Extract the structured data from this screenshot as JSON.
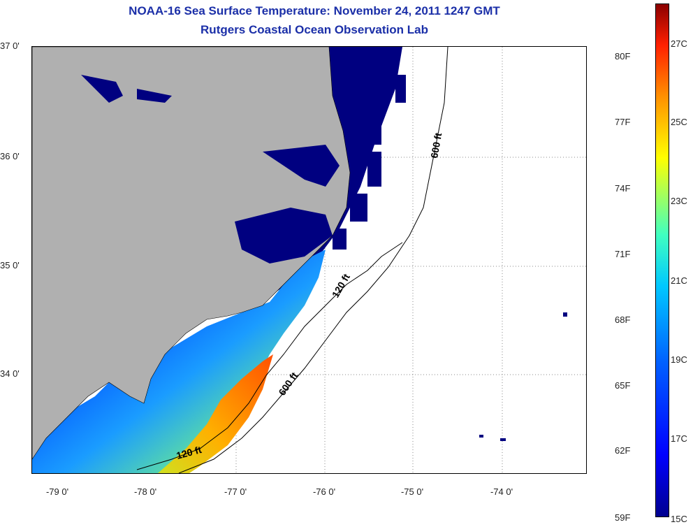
{
  "title": {
    "line1": "NOAA-16 Sea Surface Temperature:  November 24, 2011 1247 GMT",
    "line2": "Rutgers Coastal Ocean Observation Lab"
  },
  "map": {
    "latitude_labels": [
      "37 0'",
      "36 0'",
      "35 0'",
      "34 0'"
    ],
    "longitude_labels": [
      "-79 0'",
      "-78 0'",
      "-77 0'",
      "-76 0'",
      "-75 0'",
      "-74 0'"
    ],
    "depth_contours": {
      "shallow": "120 ft",
      "deep": "600 ft"
    },
    "colors": {
      "land": "#b0b0b0",
      "water_cold": "#000080",
      "no_data": "#ffffff"
    }
  },
  "colorbar": {
    "fahrenheit_labels": [
      "80F",
      "77F",
      "74F",
      "71F",
      "68F",
      "65F",
      "62F",
      "59F"
    ],
    "celsius_labels": [
      "27C",
      "25C",
      "23C",
      "21C",
      "19C",
      "17C",
      "15C"
    ],
    "min_color": "#00008f",
    "max_color": "#8a0000"
  }
}
